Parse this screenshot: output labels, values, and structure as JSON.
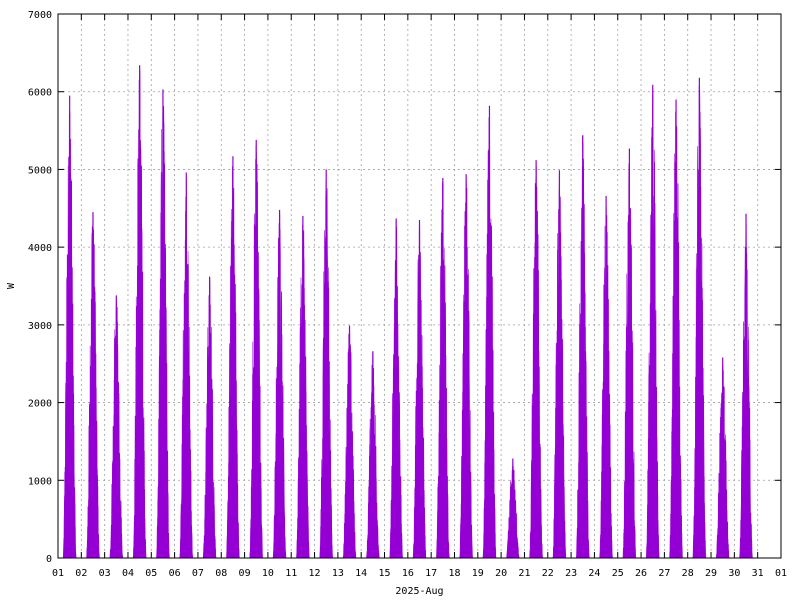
{
  "chart_data": {
    "type": "area",
    "xlabel": "2025-Aug",
    "ylabel": "W",
    "ylim": [
      0,
      7000
    ],
    "y_ticks": [
      "0",
      "1000",
      "2000",
      "3000",
      "4000",
      "5000",
      "6000",
      "7000"
    ],
    "x_tick_labels": [
      "01",
      "02",
      "03",
      "04",
      "05",
      "06",
      "07",
      "08",
      "09",
      "10",
      "11",
      "12",
      "13",
      "14",
      "15",
      "16",
      "17",
      "18",
      "19",
      "20",
      "21",
      "22",
      "23",
      "24",
      "25",
      "26",
      "27",
      "28",
      "29",
      "30",
      "31",
      "01"
    ],
    "grid": true,
    "series": [
      {
        "color": "#9400d3",
        "daily_peaks_w": [
          5950,
          4450,
          3380,
          6340,
          6030,
          4960,
          3620,
          5170,
          5380,
          4480,
          4400,
          5000,
          2990,
          2660,
          4370,
          4350,
          4890,
          4940,
          5820,
          1280,
          5120,
          4990,
          5440,
          4660,
          5270,
          6090,
          5900,
          6180,
          2580,
          4430
        ]
      }
    ]
  }
}
